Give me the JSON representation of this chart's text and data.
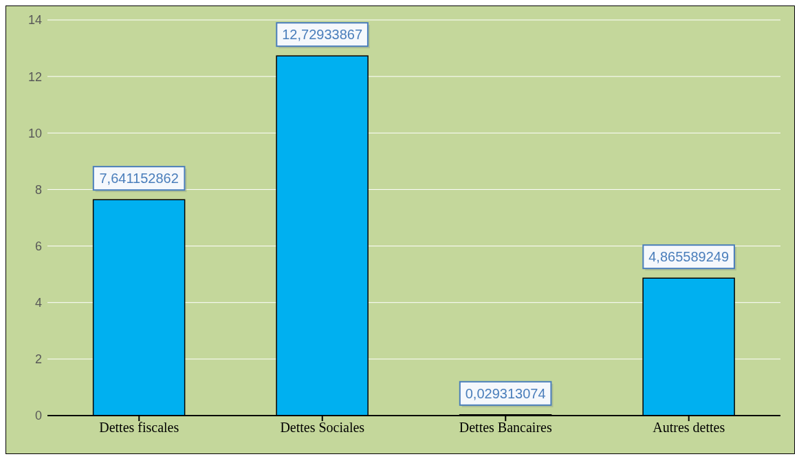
{
  "chart_data": {
    "type": "bar",
    "categories": [
      "Dettes fiscales",
      "Dettes Sociales",
      "Dettes Bancaires",
      "Autres dettes"
    ],
    "values": [
      7.641152862,
      12.72933867,
      0.029313074,
      4.865589249
    ],
    "color": "#00b0f0",
    "value_labels": [
      "7,641152862",
      "12,72933867",
      "0,029313074",
      "4,865589249"
    ],
    "ylim": [
      0,
      14
    ],
    "yticks": [
      0,
      2,
      4,
      6,
      8,
      10,
      12,
      14
    ],
    "grid": "y"
  }
}
